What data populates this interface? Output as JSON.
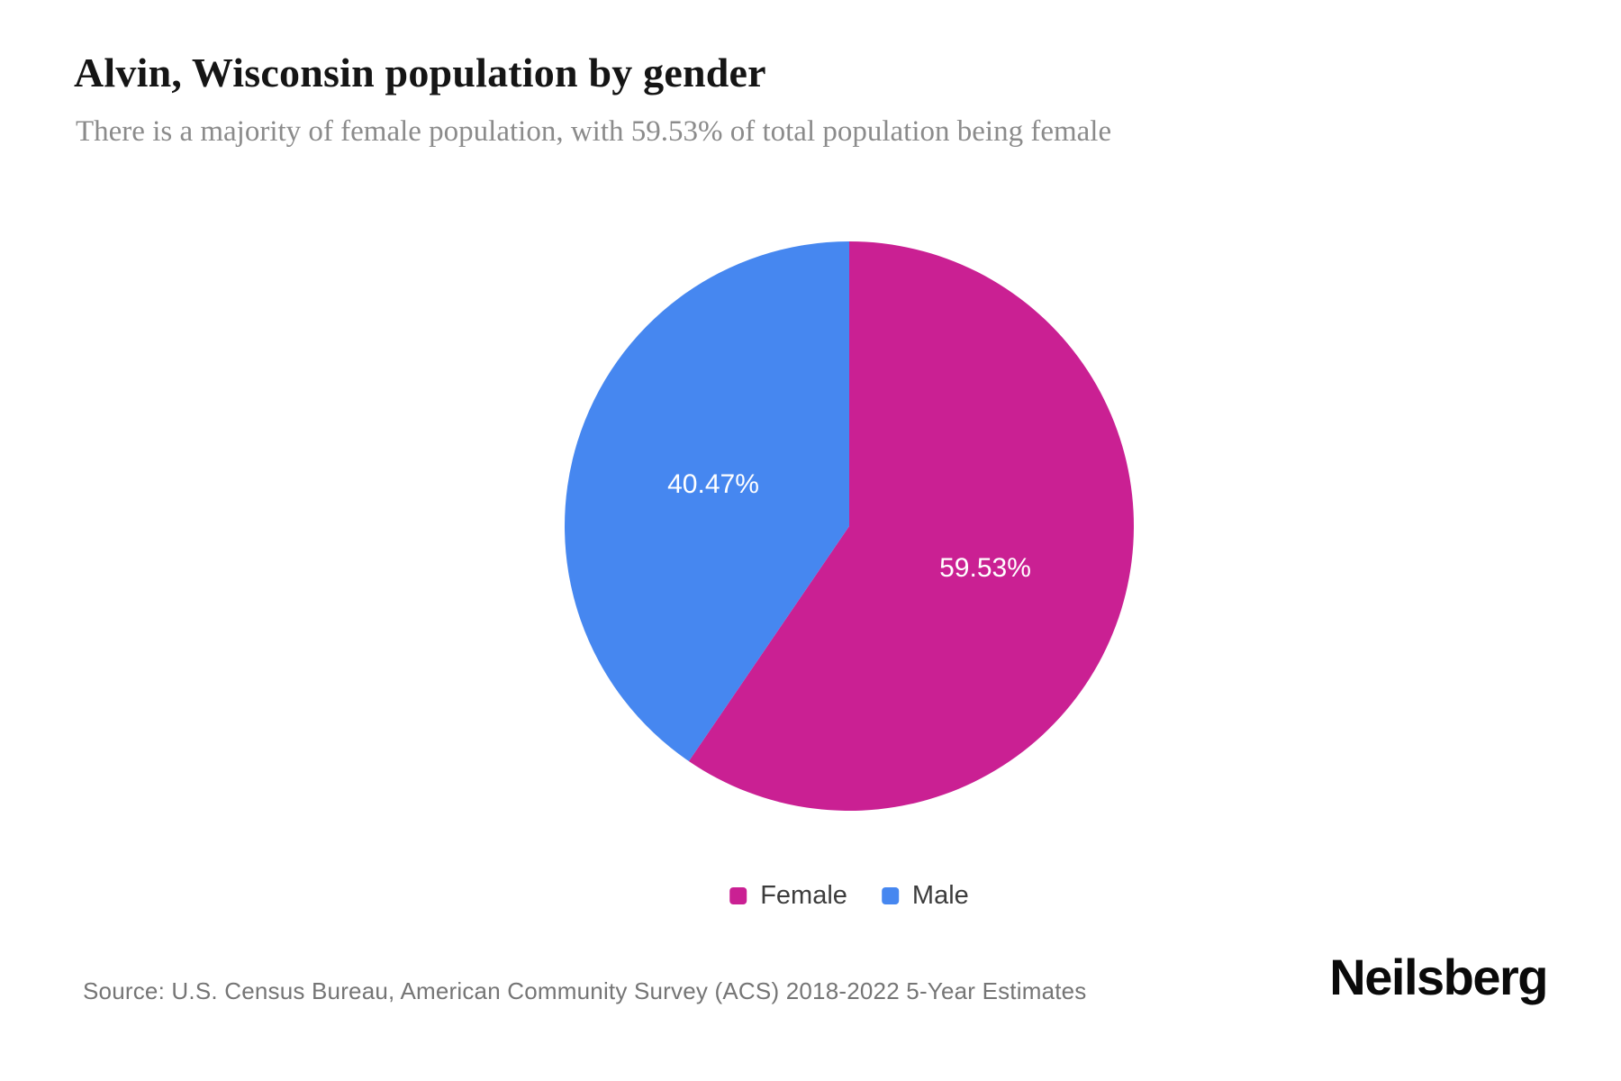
{
  "header": {
    "title": "Alvin, Wisconsin population by gender",
    "subtitle": "There is a majority of female population, with 59.53% of total population being female"
  },
  "chart_data": {
    "type": "pie",
    "title": "Alvin, Wisconsin population by gender",
    "subtitle": "There is a majority of female population, with 59.53% of total population being female",
    "categories": [
      "Female",
      "Male"
    ],
    "values": [
      59.53,
      40.47
    ],
    "unit": "percent of total population",
    "start_angle": "top",
    "direction": "clockwise",
    "legend_position": "bottom",
    "slice_label_style": "percent-inside-white",
    "slices": [
      {
        "label": "Female",
        "value": 59.53,
        "pct_label": "59.53%",
        "color": "#CA2093"
      },
      {
        "label": "Male",
        "value": 40.47,
        "pct_label": "40.47%",
        "color": "#4687F0"
      }
    ]
  },
  "footer": {
    "source": "Source: U.S. Census Bureau, American Community Survey (ACS) 2018-2022 5-Year Estimates",
    "brand": "Neilsberg"
  }
}
